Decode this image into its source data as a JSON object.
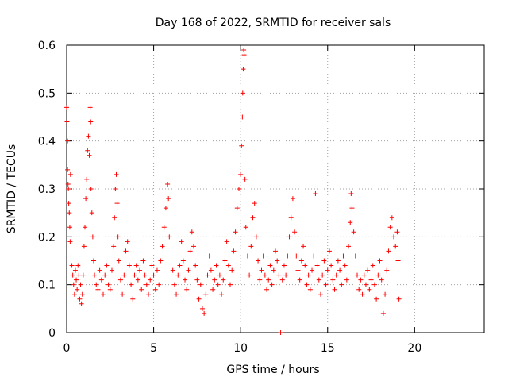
{
  "chart_data": {
    "type": "scatter",
    "title": "Day 168 of 2022, SRMTID for receiver sals",
    "xlabel": "GPS time / hours",
    "ylabel": "SRMTID / TECUs",
    "xlim": [
      0,
      24
    ],
    "ylim": [
      0,
      0.6
    ],
    "xticks": [
      0,
      5,
      10,
      15,
      20
    ],
    "xtick_labels": [
      "0",
      "5",
      "10",
      "15",
      "20"
    ],
    "yticks": [
      0,
      0.1,
      0.2,
      0.3,
      0.4,
      0.5,
      0.6
    ],
    "ytick_labels": [
      "0",
      "0.1",
      "0.2",
      "0.3",
      "0.4",
      "0.5",
      "0.6"
    ],
    "grid": true,
    "marker": "+",
    "color": "#ff0000",
    "series": [
      {
        "name": "sals",
        "points": [
          [
            0.0,
            0.47
          ],
          [
            0.02,
            0.44
          ],
          [
            0.05,
            0.4
          ],
          [
            0.05,
            0.34
          ],
          [
            0.08,
            0.31
          ],
          [
            0.1,
            0.3
          ],
          [
            0.12,
            0.27
          ],
          [
            0.15,
            0.25
          ],
          [
            0.18,
            0.22
          ],
          [
            0.2,
            0.19
          ],
          [
            0.22,
            0.33
          ],
          [
            0.25,
            0.16
          ],
          [
            0.3,
            0.14
          ],
          [
            0.35,
            0.12
          ],
          [
            0.4,
            0.1
          ],
          [
            0.45,
            0.08
          ],
          [
            0.5,
            0.13
          ],
          [
            0.55,
            0.11
          ],
          [
            0.6,
            0.09
          ],
          [
            0.65,
            0.14
          ],
          [
            0.7,
            0.12
          ],
          [
            0.75,
            0.07
          ],
          [
            0.8,
            0.1
          ],
          [
            0.85,
            0.06
          ],
          [
            0.9,
            0.08
          ],
          [
            0.95,
            0.12
          ],
          [
            1.0,
            0.18
          ],
          [
            1.05,
            0.22
          ],
          [
            1.1,
            0.28
          ],
          [
            1.15,
            0.32
          ],
          [
            1.2,
            0.38
          ],
          [
            1.25,
            0.41
          ],
          [
            1.3,
            0.37
          ],
          [
            1.35,
            0.47
          ],
          [
            1.38,
            0.44
          ],
          [
            1.4,
            0.3
          ],
          [
            1.45,
            0.25
          ],
          [
            1.5,
            0.2
          ],
          [
            1.55,
            0.15
          ],
          [
            1.6,
            0.12
          ],
          [
            1.7,
            0.1
          ],
          [
            1.8,
            0.09
          ],
          [
            1.9,
            0.13
          ],
          [
            2.0,
            0.11
          ],
          [
            2.1,
            0.08
          ],
          [
            2.2,
            0.12
          ],
          [
            2.3,
            0.14
          ],
          [
            2.4,
            0.1
          ],
          [
            2.5,
            0.09
          ],
          [
            2.6,
            0.13
          ],
          [
            2.7,
            0.18
          ],
          [
            2.75,
            0.24
          ],
          [
            2.8,
            0.3
          ],
          [
            2.85,
            0.33
          ],
          [
            2.9,
            0.27
          ],
          [
            2.95,
            0.2
          ],
          [
            3.0,
            0.15
          ],
          [
            3.1,
            0.11
          ],
          [
            3.2,
            0.08
          ],
          [
            3.3,
            0.12
          ],
          [
            3.4,
            0.17
          ],
          [
            3.5,
            0.19
          ],
          [
            3.6,
            0.14
          ],
          [
            3.7,
            0.1
          ],
          [
            3.8,
            0.07
          ],
          [
            3.9,
            0.12
          ],
          [
            4.0,
            0.14
          ],
          [
            4.1,
            0.11
          ],
          [
            4.2,
            0.13
          ],
          [
            4.3,
            0.09
          ],
          [
            4.4,
            0.15
          ],
          [
            4.5,
            0.12
          ],
          [
            4.6,
            0.1
          ],
          [
            4.7,
            0.08
          ],
          [
            4.8,
            0.11
          ],
          [
            4.9,
            0.14
          ],
          [
            5.0,
            0.12
          ],
          [
            5.1,
            0.09
          ],
          [
            5.2,
            0.13
          ],
          [
            5.3,
            0.1
          ],
          [
            5.4,
            0.15
          ],
          [
            5.5,
            0.18
          ],
          [
            5.6,
            0.22
          ],
          [
            5.7,
            0.26
          ],
          [
            5.8,
            0.31
          ],
          [
            5.85,
            0.28
          ],
          [
            5.9,
            0.2
          ],
          [
            6.0,
            0.16
          ],
          [
            6.1,
            0.13
          ],
          [
            6.2,
            0.1
          ],
          [
            6.3,
            0.08
          ],
          [
            6.4,
            0.12
          ],
          [
            6.5,
            0.14
          ],
          [
            6.6,
            0.19
          ],
          [
            6.7,
            0.15
          ],
          [
            6.8,
            0.11
          ],
          [
            6.9,
            0.09
          ],
          [
            7.0,
            0.13
          ],
          [
            7.1,
            0.17
          ],
          [
            7.2,
            0.21
          ],
          [
            7.3,
            0.18
          ],
          [
            7.4,
            0.14
          ],
          [
            7.5,
            0.11
          ],
          [
            7.6,
            0.07
          ],
          [
            7.7,
            0.1
          ],
          [
            7.8,
            0.05
          ],
          [
            7.9,
            0.04
          ],
          [
            8.0,
            0.08
          ],
          [
            8.1,
            0.12
          ],
          [
            8.2,
            0.16
          ],
          [
            8.3,
            0.13
          ],
          [
            8.4,
            0.09
          ],
          [
            8.5,
            0.11
          ],
          [
            8.6,
            0.14
          ],
          [
            8.7,
            0.1
          ],
          [
            8.8,
            0.12
          ],
          [
            8.9,
            0.08
          ],
          [
            9.0,
            0.11
          ],
          [
            9.1,
            0.15
          ],
          [
            9.2,
            0.19
          ],
          [
            9.3,
            0.14
          ],
          [
            9.4,
            0.1
          ],
          [
            9.5,
            0.13
          ],
          [
            9.6,
            0.17
          ],
          [
            9.7,
            0.21
          ],
          [
            9.8,
            0.26
          ],
          [
            9.9,
            0.3
          ],
          [
            10.0,
            0.33
          ],
          [
            10.05,
            0.39
          ],
          [
            10.1,
            0.45
          ],
          [
            10.12,
            0.5
          ],
          [
            10.15,
            0.55
          ],
          [
            10.18,
            0.59
          ],
          [
            10.2,
            0.58
          ],
          [
            10.25,
            0.32
          ],
          [
            10.3,
            0.22
          ],
          [
            10.4,
            0.16
          ],
          [
            10.5,
            0.12
          ],
          [
            10.6,
            0.18
          ],
          [
            10.7,
            0.24
          ],
          [
            10.8,
            0.27
          ],
          [
            10.9,
            0.2
          ],
          [
            11.0,
            0.15
          ],
          [
            11.1,
            0.11
          ],
          [
            11.2,
            0.13
          ],
          [
            11.3,
            0.16
          ],
          [
            11.4,
            0.12
          ],
          [
            11.5,
            0.09
          ],
          [
            11.6,
            0.11
          ],
          [
            11.7,
            0.14
          ],
          [
            11.8,
            0.1
          ],
          [
            11.9,
            0.13
          ],
          [
            12.0,
            0.17
          ],
          [
            12.1,
            0.15
          ],
          [
            12.2,
            0.12
          ],
          [
            12.3,
            0.0
          ],
          [
            12.4,
            0.11
          ],
          [
            12.5,
            0.14
          ],
          [
            12.6,
            0.12
          ],
          [
            12.7,
            0.16
          ],
          [
            12.8,
            0.2
          ],
          [
            12.9,
            0.24
          ],
          [
            13.0,
            0.28
          ],
          [
            13.1,
            0.21
          ],
          [
            13.2,
            0.16
          ],
          [
            13.3,
            0.13
          ],
          [
            13.4,
            0.11
          ],
          [
            13.5,
            0.15
          ],
          [
            13.6,
            0.18
          ],
          [
            13.7,
            0.14
          ],
          [
            13.8,
            0.1
          ],
          [
            13.9,
            0.12
          ],
          [
            14.0,
            0.09
          ],
          [
            14.1,
            0.13
          ],
          [
            14.2,
            0.16
          ],
          [
            14.3,
            0.29
          ],
          [
            14.4,
            0.14
          ],
          [
            14.5,
            0.11
          ],
          [
            14.6,
            0.08
          ],
          [
            14.7,
            0.12
          ],
          [
            14.8,
            0.15
          ],
          [
            14.9,
            0.1
          ],
          [
            15.0,
            0.13
          ],
          [
            15.1,
            0.17
          ],
          [
            15.2,
            0.14
          ],
          [
            15.3,
            0.11
          ],
          [
            15.4,
            0.09
          ],
          [
            15.5,
            0.12
          ],
          [
            15.6,
            0.15
          ],
          [
            15.7,
            0.13
          ],
          [
            15.8,
            0.1
          ],
          [
            15.9,
            0.16
          ],
          [
            16.0,
            0.14
          ],
          [
            16.1,
            0.11
          ],
          [
            16.2,
            0.18
          ],
          [
            16.3,
            0.23
          ],
          [
            16.35,
            0.29
          ],
          [
            16.4,
            0.26
          ],
          [
            16.5,
            0.21
          ],
          [
            16.6,
            0.16
          ],
          [
            16.7,
            0.12
          ],
          [
            16.8,
            0.09
          ],
          [
            16.9,
            0.11
          ],
          [
            17.0,
            0.08
          ],
          [
            17.1,
            0.12
          ],
          [
            17.2,
            0.1
          ],
          [
            17.3,
            0.13
          ],
          [
            17.4,
            0.09
          ],
          [
            17.5,
            0.11
          ],
          [
            17.6,
            0.14
          ],
          [
            17.7,
            0.1
          ],
          [
            17.8,
            0.07
          ],
          [
            17.9,
            0.12
          ],
          [
            18.0,
            0.15
          ],
          [
            18.1,
            0.11
          ],
          [
            18.2,
            0.04
          ],
          [
            18.3,
            0.08
          ],
          [
            18.4,
            0.13
          ],
          [
            18.5,
            0.17
          ],
          [
            18.6,
            0.22
          ],
          [
            18.7,
            0.24
          ],
          [
            18.8,
            0.2
          ],
          [
            18.9,
            0.18
          ],
          [
            19.0,
            0.21
          ],
          [
            19.05,
            0.15
          ],
          [
            19.1,
            0.07
          ]
        ]
      }
    ]
  }
}
